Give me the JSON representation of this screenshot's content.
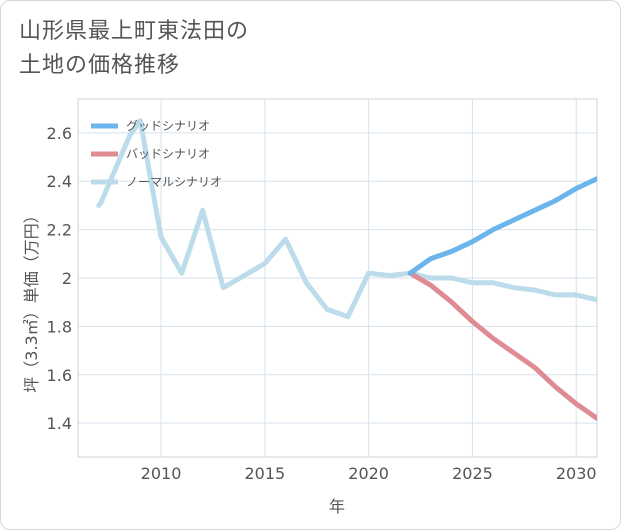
{
  "title_lines": [
    "山形県最上町東法田の",
    "土地の価格推移"
  ],
  "chart_data": {
    "type": "line",
    "title": "山形県最上町東法田の土地の価格推移",
    "xlabel": "年",
    "ylabel": "坪（3.3㎡）単価（万円）",
    "xlim": [
      2006,
      2031
    ],
    "ylim": [
      1.26,
      2.74
    ],
    "xticks": [
      2010,
      2015,
      2020,
      2025,
      2030
    ],
    "yticks": [
      1.4,
      1.6,
      1.8,
      2.0,
      2.2,
      2.4,
      2.6
    ],
    "ytick_labels": [
      "1.4",
      "1.6",
      "1.8",
      "2",
      "2.2",
      "2.4",
      "2.6"
    ],
    "grid": true,
    "legend_position": "top-left",
    "series": [
      {
        "name": "グッドシナリオ",
        "color": "#6cb4ec",
        "x": [
          2022,
          2023,
          2024,
          2025,
          2026,
          2027,
          2028,
          2029,
          2030,
          2031
        ],
        "y": [
          2.02,
          2.08,
          2.11,
          2.15,
          2.2,
          2.24,
          2.28,
          2.32,
          2.37,
          2.41
        ]
      },
      {
        "name": "バッドシナリオ",
        "color": "#df8b94",
        "x": [
          2022,
          2023,
          2024,
          2025,
          2026,
          2027,
          2028,
          2029,
          2030,
          2031
        ],
        "y": [
          2.02,
          1.97,
          1.9,
          1.82,
          1.75,
          1.69,
          1.63,
          1.55,
          1.48,
          1.42
        ]
      },
      {
        "name": "ノーマルシナリオ",
        "color": "#bcdceb",
        "x": [
          2007,
          2007.1,
          2008.5,
          2009,
          2010,
          2011,
          2012,
          2013,
          2014,
          2015,
          2016,
          2017,
          2018,
          2019,
          2020,
          2021,
          2022,
          2023,
          2024,
          2025,
          2026,
          2027,
          2028,
          2029,
          2030,
          2031
        ],
        "y": [
          2.3,
          2.31,
          2.59,
          2.65,
          2.17,
          2.02,
          2.28,
          1.96,
          2.01,
          2.06,
          2.16,
          1.98,
          1.87,
          1.84,
          2.02,
          2.01,
          2.02,
          2.0,
          2.0,
          1.98,
          1.98,
          1.96,
          1.95,
          1.93,
          1.93,
          1.91
        ]
      }
    ]
  }
}
